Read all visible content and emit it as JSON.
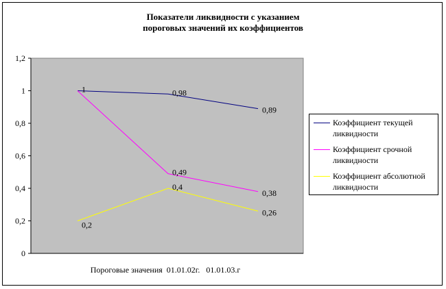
{
  "title_lines": [
    "Показатели ликвидности с указанием",
    "пороговых значений их коэффициентов"
  ],
  "chart_data": {
    "type": "line",
    "title": "Показатели ликвидности с указанием пороговых значений их коэффициентов",
    "categories": [
      "Пороговые значения",
      "01.01.02г.",
      "01.01.03.г"
    ],
    "x_axis_text": "Пороговые значения  01.01.02г.   01.01.03.г",
    "ylim": [
      0,
      1.2
    ],
    "y_ticks": [
      "0",
      "0,2",
      "0,4",
      "0,6",
      "0,8",
      "1",
      "1,2"
    ],
    "grid": false,
    "legend_position": "right",
    "plot_background": "#c0c0c0",
    "series": [
      {
        "name": "Коэффициент текущей ликвидности",
        "values": [
          1,
          0.98,
          0.89
        ],
        "labels": [
          "1",
          "0,98",
          "0,89"
        ],
        "color": "#000080"
      },
      {
        "name": "Коэффициент срочной ликвидности",
        "values": [
          1,
          0.49,
          0.38
        ],
        "labels": [
          "",
          "0,49",
          "0,38"
        ],
        "color": "#ff00ff"
      },
      {
        "name": "Коэффициент абсолютной ликвидности",
        "values": [
          0.2,
          0.4,
          0.26
        ],
        "labels": [
          "0,2",
          "0,4",
          "0,26"
        ],
        "color": "#ffff00"
      }
    ]
  }
}
